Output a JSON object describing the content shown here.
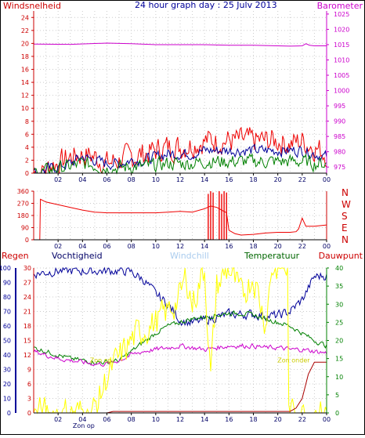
{
  "title": "24 hour graph day : 25 Julv 2013",
  "colors": {
    "red": "#ee0000",
    "blue": "#000099",
    "green": "#008000",
    "magenta": "#cc00cc",
    "yellow": "#ffff00",
    "darkred": "#aa0000",
    "windchill": "#aaccee",
    "frame": "#000000"
  },
  "chart_data": [
    {
      "type": "line",
      "name": "wind-barometer",
      "left_label": "Windsnelheid",
      "right_label": "Barometer",
      "y_left_ticks": [
        "0",
        "2",
        "4",
        "6",
        "8",
        "10",
        "12",
        "14",
        "16",
        "18",
        "20",
        "22",
        "24"
      ],
      "y_left_lim": [
        0,
        25
      ],
      "y_right_ticks": [
        "975",
        "980",
        "985",
        "990",
        "995",
        "1000",
        "1005",
        "1010",
        "1015",
        "1020",
        "1025"
      ],
      "y_right_lim": [
        973,
        1026
      ],
      "x_ticks": [
        "02",
        "04",
        "06",
        "08",
        "10",
        "12",
        "14",
        "16",
        "18",
        "20",
        "22",
        "00"
      ],
      "series": [
        {
          "color": "red",
          "axis": "left",
          "style": "noise",
          "x": [
            0,
            1,
            1.5,
            2,
            3,
            4,
            5,
            6,
            7,
            8,
            9,
            10,
            11,
            12,
            13,
            14,
            15,
            16,
            17,
            18,
            19,
            20,
            21,
            22,
            23,
            24
          ],
          "y": [
            0,
            0.5,
            1.5,
            1.5,
            2.5,
            3,
            2.5,
            1.5,
            2,
            2.5,
            3,
            3.5,
            4,
            4,
            4.5,
            5,
            5,
            5,
            5,
            5,
            5,
            5,
            4.5,
            5,
            4,
            3
          ],
          "amp": 1.8
        },
        {
          "color": "blue",
          "axis": "left",
          "style": "noise",
          "x": [
            0,
            1,
            2,
            3,
            4,
            5,
            6,
            7,
            8,
            9,
            10,
            11,
            12,
            13,
            14,
            15,
            16,
            17,
            18,
            19,
            20,
            21,
            22,
            23,
            24
          ],
          "y": [
            0,
            0.5,
            1,
            1.5,
            2.5,
            2,
            1.5,
            1.5,
            2,
            2,
            2.5,
            3,
            3,
            3,
            3.5,
            3.5,
            3.5,
            3.5,
            3.5,
            3.5,
            3.5,
            3.5,
            3.5,
            3,
            2.5
          ],
          "amp": 0.8
        },
        {
          "color": "green",
          "axis": "left",
          "style": "noise",
          "x": [
            0,
            1,
            2,
            3,
            4,
            5,
            6,
            7,
            8,
            9,
            10,
            11,
            12,
            13,
            14,
            15,
            16,
            17,
            18,
            19,
            20,
            21,
            22,
            23,
            24
          ],
          "y": [
            0,
            0.3,
            0.8,
            1,
            1.5,
            1.2,
            0.8,
            0.8,
            1,
            1,
            1.2,
            1.5,
            1.5,
            1.5,
            1.8,
            1.8,
            1.8,
            1.8,
            1.8,
            1.8,
            1.8,
            1.8,
            1.8,
            1.5,
            1.5
          ],
          "amp": 1.0
        },
        {
          "color": "magenta",
          "axis": "right",
          "style": "line",
          "x": [
            0,
            3,
            6,
            8,
            10,
            12,
            14,
            16,
            18,
            20,
            21,
            22,
            22.3,
            22.6,
            23,
            24
          ],
          "y": [
            1015.2,
            1015.1,
            1015.5,
            1015.3,
            1015,
            1015,
            1015,
            1014.8,
            1014.8,
            1014.6,
            1014.5,
            1014.6,
            1015.3,
            1014.8,
            1014.6,
            1014.6
          ]
        }
      ]
    },
    {
      "type": "line",
      "name": "wind-direction",
      "right_label_letters": [
        "N",
        "W",
        "S",
        "E",
        "N"
      ],
      "y_ticks": [
        "0",
        "90",
        "180",
        "270",
        "360"
      ],
      "y_lim": [
        0,
        360
      ],
      "x_ticks": [
        "02",
        "04",
        "06",
        "08",
        "10",
        "12",
        "14",
        "16",
        "18",
        "20",
        "22",
        "00"
      ],
      "series": [
        {
          "color": "red",
          "style": "line",
          "x": [
            0,
            0.5,
            0.55,
            1,
            2,
            3,
            4,
            5,
            6,
            7,
            8,
            9,
            10,
            11,
            12,
            13,
            14,
            14.5,
            15,
            15.8,
            16,
            16.5,
            17,
            18,
            19,
            20,
            21,
            21.5,
            21.7,
            22,
            22.3,
            23,
            24
          ],
          "y": [
            0,
            0,
            300,
            280,
            260,
            240,
            220,
            205,
            200,
            200,
            200,
            200,
            200,
            205,
            210,
            205,
            230,
            250,
            240,
            200,
            70,
            45,
            35,
            40,
            50,
            55,
            55,
            60,
            80,
            160,
            100,
            100,
            110
          ]
        },
        {
          "color": "red",
          "style": "bars",
          "x": [
            14.3,
            14.5,
            14.7,
            15.2,
            15.4,
            15.6,
            15.8
          ],
          "y": [
            340,
            360,
            350,
            360,
            340,
            360,
            350
          ]
        }
      ]
    },
    {
      "type": "line",
      "name": "humidity-temperature-rain",
      "labels": {
        "rain": "Regen",
        "humidity": "Vochtigheid",
        "windchill": "Windchill",
        "temperature": "Temperatuur",
        "dewpoint": "Dauwpunt"
      },
      "y_rain_ticks": [
        "0",
        "3",
        "6",
        "9",
        "12",
        "15",
        "18",
        "21",
        "24",
        "27",
        "30"
      ],
      "y_rain_lim": [
        0,
        30
      ],
      "y_humidity_ticks": [
        "0",
        "10",
        "20",
        "30",
        "40",
        "50",
        "60",
        "70",
        "80",
        "90",
        "100"
      ],
      "y_humidity_lim": [
        0,
        100
      ],
      "y_temperature_ticks": [
        "0",
        "5",
        "10",
        "15",
        "20",
        "25",
        "30",
        "35",
        "40"
      ],
      "y_temperature_lim": [
        0,
        40
      ],
      "x_ticks": [
        "02",
        "04",
        "06",
        "08",
        "10",
        "12",
        "14",
        "16",
        "18",
        "20",
        "22",
        "00"
      ],
      "annotations": [
        {
          "text": "Zon op",
          "x": 5.5,
          "y": 14
        },
        {
          "text": "Zon onder",
          "x": 21.3,
          "y": 14
        },
        {
          "text": "Zon op",
          "x": 4.1,
          "y": -8
        }
      ],
      "series": [
        {
          "color": "blue",
          "axis": "humidity",
          "style": "noise",
          "x": [
            0,
            1,
            2,
            3,
            4,
            5,
            6,
            7,
            7.5,
            8,
            9,
            10,
            11,
            12,
            13,
            14,
            15,
            16,
            17,
            18,
            19,
            20,
            21,
            22,
            22.5,
            23,
            24
          ],
          "y": [
            96,
            97,
            98,
            98,
            98,
            98,
            98,
            98,
            98,
            97,
            92,
            82,
            75,
            64,
            62,
            64,
            66,
            68,
            68,
            68,
            67,
            67,
            70,
            78,
            86,
            94,
            95
          ],
          "amp": 3
        },
        {
          "color": "green",
          "axis": "temperature",
          "style": "noise",
          "x": [
            0,
            1,
            2,
            3,
            4,
            5,
            6,
            7,
            8,
            9,
            10,
            11,
            12,
            13,
            14,
            15,
            16,
            17,
            18,
            19,
            20,
            21,
            22,
            23,
            24
          ],
          "y": [
            18,
            17,
            16,
            15,
            14.5,
            14,
            14,
            14.5,
            17,
            19.5,
            22,
            24,
            25,
            26,
            26.5,
            27,
            27.5,
            27.5,
            27,
            26,
            25,
            24,
            22,
            20,
            18.5
          ],
          "amp": 0.6
        },
        {
          "color": "magenta",
          "axis": "temperature",
          "style": "noise",
          "x": [
            0,
            1,
            2,
            3,
            4,
            5,
            6,
            7,
            8,
            9,
            10,
            11,
            12,
            13,
            14,
            15,
            16,
            17,
            18,
            19,
            20,
            21,
            22,
            23,
            24
          ],
          "y": [
            17,
            16,
            15,
            14.5,
            14,
            13.5,
            13.5,
            14.5,
            16,
            17,
            17.5,
            18,
            18.5,
            18,
            17.5,
            18,
            18.5,
            18.5,
            18.5,
            18,
            18,
            17.5,
            17.5,
            17,
            16.5
          ],
          "amp": 0.6
        },
        {
          "color": "yellow",
          "axis": "temperature",
          "style": "noise",
          "x": [
            0,
            4.8,
            5.5,
            6,
            7,
            8,
            9,
            10,
            11,
            12,
            12.5,
            13,
            14,
            14.5,
            15,
            16,
            17,
            18,
            19,
            19.5,
            20,
            20.5,
            20.8,
            20.9,
            24
          ],
          "y": [
            0,
            0,
            5,
            10,
            15,
            20,
            23,
            25,
            28,
            32,
            38,
            30,
            40,
            10,
            35,
            40,
            32,
            38,
            25,
            40,
            40,
            40,
            40,
            0,
            0
          ],
          "amp": 4
        },
        {
          "color": "darkred",
          "axis": "rain",
          "style": "line",
          "x": [
            0,
            6,
            6.5,
            21,
            21.5,
            22,
            22.3,
            22.5,
            23,
            24
          ],
          "y": [
            0,
            0,
            0.3,
            0.3,
            1,
            3,
            6,
            8,
            10.5,
            10.5
          ]
        }
      ]
    }
  ]
}
